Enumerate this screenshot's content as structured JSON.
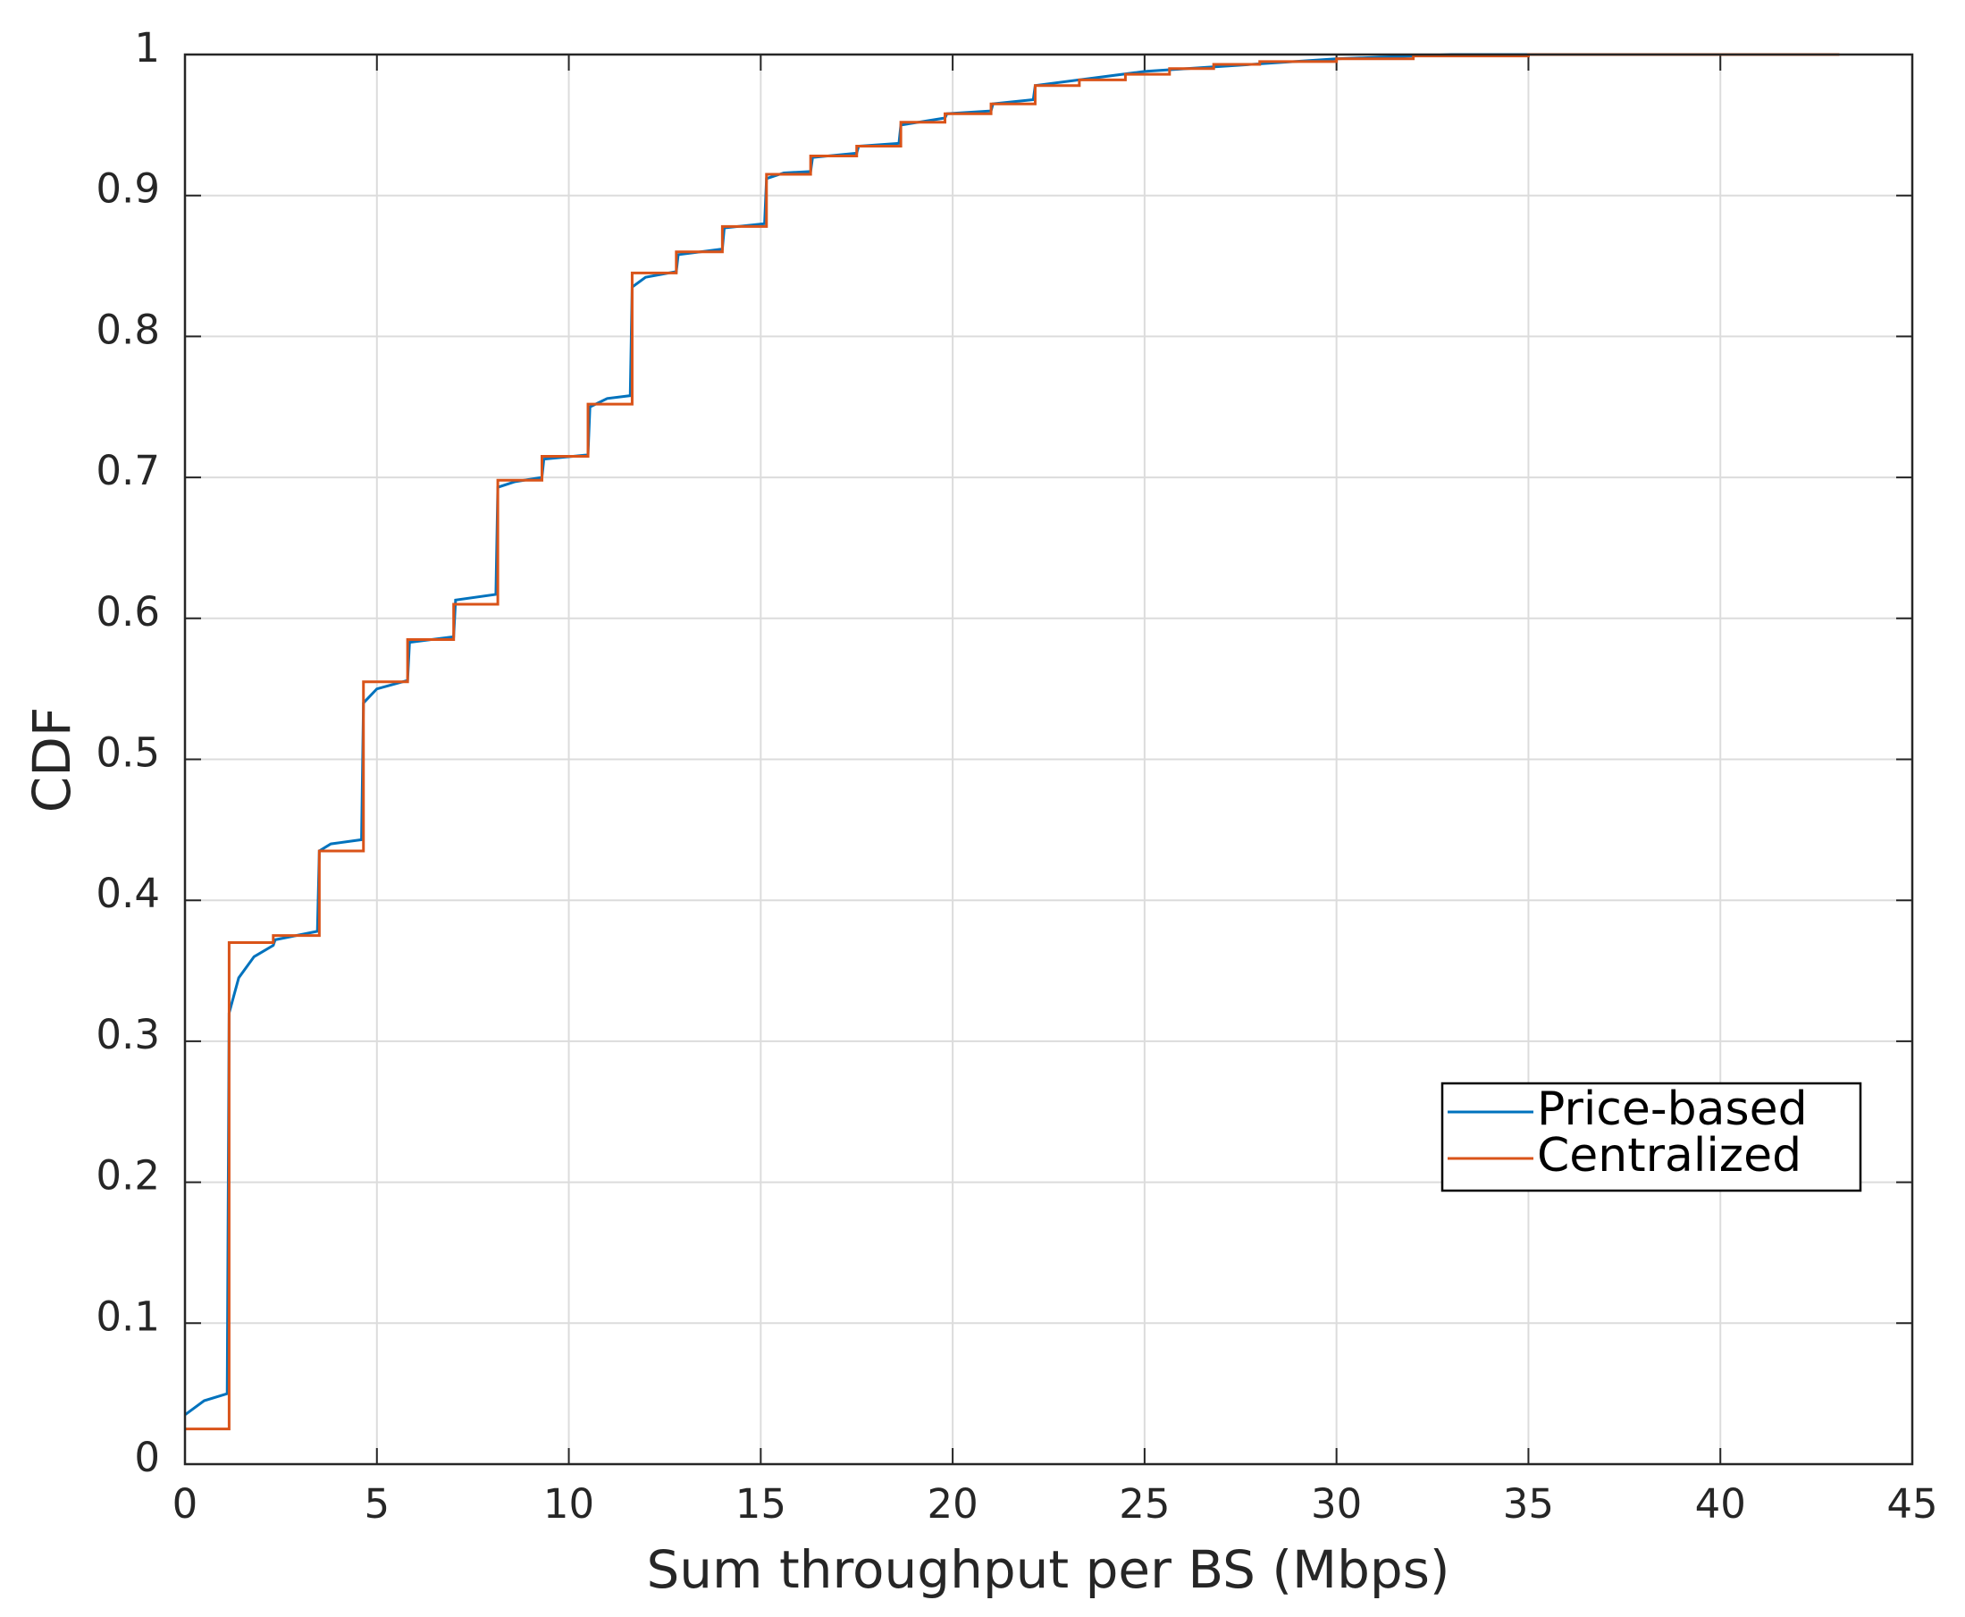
{
  "chart_data": {
    "type": "line",
    "xlabel": "Sum throughput per BS (Mbps)",
    "ylabel": "CDF",
    "xlim": [
      0,
      45
    ],
    "ylim": [
      0,
      1
    ],
    "xticks": [
      0,
      5,
      10,
      15,
      20,
      25,
      30,
      35,
      40,
      45
    ],
    "yticks": [
      0,
      0.1,
      0.2,
      0.3,
      0.4,
      0.5,
      0.6,
      0.7,
      0.8,
      0.9,
      1
    ],
    "grid": true,
    "legend_location": "lower right",
    "series": [
      {
        "name": "Price-based",
        "color": "#0072BD",
        "drawstyle": "default",
        "x": [
          0,
          0.5,
          1.1,
          1.15,
          1.4,
          1.8,
          2.3,
          2.35,
          3.45,
          3.5,
          3.8,
          4.6,
          4.65,
          5.0,
          5.8,
          5.85,
          7.0,
          7.05,
          8.1,
          8.15,
          8.6,
          9.3,
          9.35,
          10.5,
          10.55,
          11.0,
          11.6,
          11.65,
          12.0,
          12.8,
          12.85,
          14.0,
          14.05,
          15.1,
          15.15,
          15.6,
          16.3,
          16.35,
          17.5,
          17.55,
          18.6,
          18.65,
          19.8,
          19.85,
          21.0,
          21.05,
          22.1,
          22.15,
          25,
          30,
          33,
          43
        ],
        "values": [
          0.035,
          0.045,
          0.05,
          0.32,
          0.345,
          0.36,
          0.368,
          0.372,
          0.378,
          0.435,
          0.44,
          0.443,
          0.54,
          0.55,
          0.556,
          0.583,
          0.587,
          0.613,
          0.617,
          0.693,
          0.697,
          0.7,
          0.713,
          0.716,
          0.75,
          0.756,
          0.758,
          0.835,
          0.842,
          0.846,
          0.858,
          0.862,
          0.877,
          0.88,
          0.912,
          0.916,
          0.917,
          0.927,
          0.93,
          0.935,
          0.937,
          0.95,
          0.955,
          0.958,
          0.96,
          0.965,
          0.968,
          0.978,
          0.988,
          0.997,
          1,
          1
        ]
      },
      {
        "name": "Centralized",
        "color": "#D95319",
        "drawstyle": "steps-post",
        "x": [
          0,
          1.15,
          2.3,
          3.5,
          4.65,
          5.8,
          7.0,
          8.15,
          9.3,
          10.5,
          11.65,
          12.8,
          14.0,
          15.15,
          16.3,
          17.5,
          18.65,
          19.8,
          21.0,
          22.15,
          23.3,
          24.5,
          25.65,
          26.8,
          28,
          30,
          32,
          35,
          43.1
        ],
        "values": [
          0.025,
          0.37,
          0.375,
          0.435,
          0.555,
          0.585,
          0.61,
          0.698,
          0.715,
          0.752,
          0.845,
          0.86,
          0.878,
          0.915,
          0.928,
          0.935,
          0.952,
          0.958,
          0.965,
          0.978,
          0.982,
          0.986,
          0.99,
          0.993,
          0.995,
          0.997,
          0.999,
          1,
          1
        ]
      }
    ]
  }
}
